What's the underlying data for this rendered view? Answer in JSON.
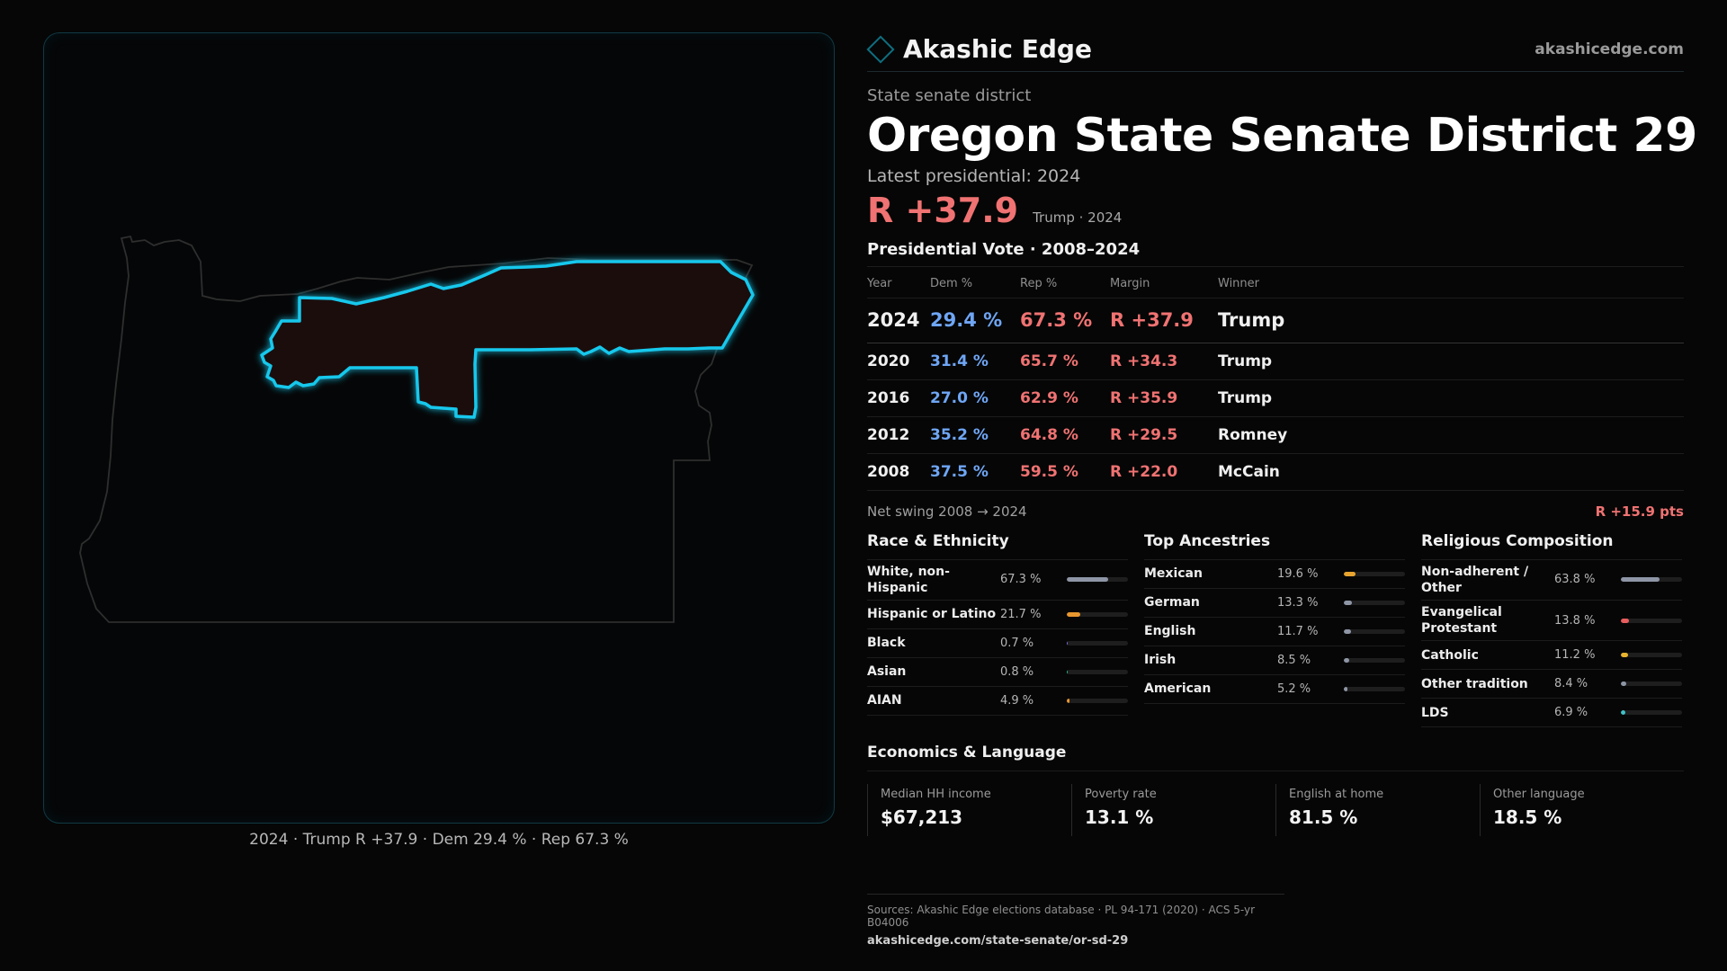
{
  "map": {
    "caption": "2024 · Trump R +37.9 · Dem 29.4 % · Rep 67.3 %"
  },
  "brand": {
    "name": "Akashic Edge",
    "url": "akashicedge.com"
  },
  "district": {
    "kind": "State senate district",
    "title": "Oregon State Senate District 29",
    "latest_label": "Latest presidential: 2024",
    "latest_margin": "R +37.9",
    "latest_sub": "Trump · 2024"
  },
  "votes": {
    "title": "Presidential Vote · 2008–2024",
    "headers": [
      "Year",
      "Dem %",
      "Rep %",
      "Margin",
      "Winner"
    ],
    "rows": [
      {
        "year": "2024",
        "dem": "29.4 %",
        "rep": "67.3 %",
        "margin": "R +37.9",
        "winner": "Trump"
      },
      {
        "year": "2020",
        "dem": "31.4 %",
        "rep": "65.7 %",
        "margin": "R +34.3",
        "winner": "Trump"
      },
      {
        "year": "2016",
        "dem": "27.0 %",
        "rep": "62.9 %",
        "margin": "R +35.9",
        "winner": "Trump"
      },
      {
        "year": "2012",
        "dem": "35.2 %",
        "rep": "64.8 %",
        "margin": "R +29.5",
        "winner": "Romney"
      },
      {
        "year": "2008",
        "dem": "37.5 %",
        "rep": "59.5 %",
        "margin": "R +22.0",
        "winner": "McCain"
      }
    ]
  },
  "swing": {
    "label": "Net swing 2008 → 2024",
    "value": "R +15.9 pts"
  },
  "race": {
    "title": "Race & Ethnicity",
    "items": [
      {
        "label": "White, non-Hispanic",
        "value": "67.3 %",
        "pct": 67.3,
        "color": "#8e96a6"
      },
      {
        "label": "Hispanic or Latino",
        "value": "21.7 %",
        "pct": 21.7,
        "color": "#e8972f"
      },
      {
        "label": "Black",
        "value": "0.7 %",
        "pct": 0.7,
        "color": "#7a6bd8"
      },
      {
        "label": "Asian",
        "value": "0.8 %",
        "pct": 0.8,
        "color": "#2fb58a"
      },
      {
        "label": "AIAN",
        "value": "4.9 %",
        "pct": 4.9,
        "color": "#e8972f"
      }
    ]
  },
  "ancestry": {
    "title": "Top Ancestries",
    "items": [
      {
        "label": "Mexican",
        "value": "19.6 %",
        "pct": 19.6,
        "color": "#e8a42f"
      },
      {
        "label": "German",
        "value": "13.3 %",
        "pct": 13.3,
        "color": "#8e96a6"
      },
      {
        "label": "English",
        "value": "11.7 %",
        "pct": 11.7,
        "color": "#8e96a6"
      },
      {
        "label": "Irish",
        "value": "8.5 %",
        "pct": 8.5,
        "color": "#8e96a6"
      },
      {
        "label": "American",
        "value": "5.2 %",
        "pct": 5.2,
        "color": "#8e96a6"
      }
    ]
  },
  "religion": {
    "title": "Religious Composition",
    "items": [
      {
        "label": "Non-adherent / Other",
        "value": "63.8 %",
        "pct": 63.8,
        "color": "#8e96a6"
      },
      {
        "label": "Evangelical Protestant",
        "value": "13.8 %",
        "pct": 13.8,
        "color": "#e85d5d"
      },
      {
        "label": "Catholic",
        "value": "11.2 %",
        "pct": 11.2,
        "color": "#e8b42f"
      },
      {
        "label": "Other tradition",
        "value": "8.4 %",
        "pct": 8.4,
        "color": "#8e96a6"
      },
      {
        "label": "LDS",
        "value": "6.9 %",
        "pct": 6.9,
        "color": "#3fc2c8"
      }
    ]
  },
  "economics": {
    "title": "Economics & Language",
    "items": [
      {
        "label": "Median HH income",
        "value": "$67,213"
      },
      {
        "label": "Poverty rate",
        "value": "13.1 %"
      },
      {
        "label": "English at home",
        "value": "81.5 %"
      },
      {
        "label": "Other language",
        "value": "18.5 %"
      }
    ]
  },
  "sources": {
    "line": "Sources: Akashic Edge elections database · PL 94-171 (2020) · ACS 5-yr B04006",
    "url": "akashicedge.com/state-senate/or-sd-29"
  }
}
